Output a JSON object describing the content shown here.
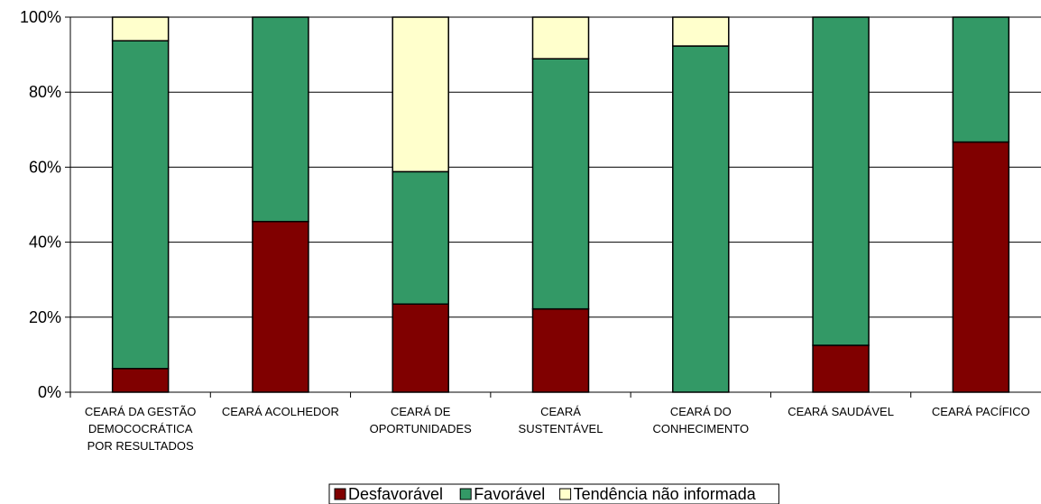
{
  "chart_data": {
    "type": "bar",
    "stacked": true,
    "percent": true,
    "categories": [
      [
        "CEARÁ DA GESTÃO",
        "DEMOCOCRÁTICA",
        "POR RESULTADOS"
      ],
      [
        "CEARÁ ACOLHEDOR"
      ],
      [
        "CEARÁ DE",
        "OPORTUNIDADES"
      ],
      [
        "CEARÁ",
        "SUSTENTÁVEL"
      ],
      [
        "CEARÁ DO",
        "CONHECIMENTO"
      ],
      [
        "CEARÁ SAUDÁVEL"
      ],
      [
        "CEARÁ PACÍFICO"
      ]
    ],
    "series": [
      {
        "name": "Desfavorável",
        "color": "#800000",
        "values": [
          6.3,
          45.5,
          23.5,
          22.2,
          0,
          12.5,
          66.7
        ]
      },
      {
        "name": "Favorável",
        "color": "#339966",
        "values": [
          87.4,
          54.5,
          35.3,
          66.7,
          92.3,
          87.5,
          33.3
        ]
      },
      {
        "name": "Tendência não informada",
        "color": "#FFFFCC",
        "values": [
          6.3,
          0,
          41.2,
          11.1,
          7.7,
          0,
          0
        ]
      }
    ],
    "yticks": [
      "0%",
      "20%",
      "40%",
      "60%",
      "80%",
      "100%"
    ],
    "ylim": [
      0,
      100
    ],
    "grid": true,
    "legend_position": "bottom"
  }
}
